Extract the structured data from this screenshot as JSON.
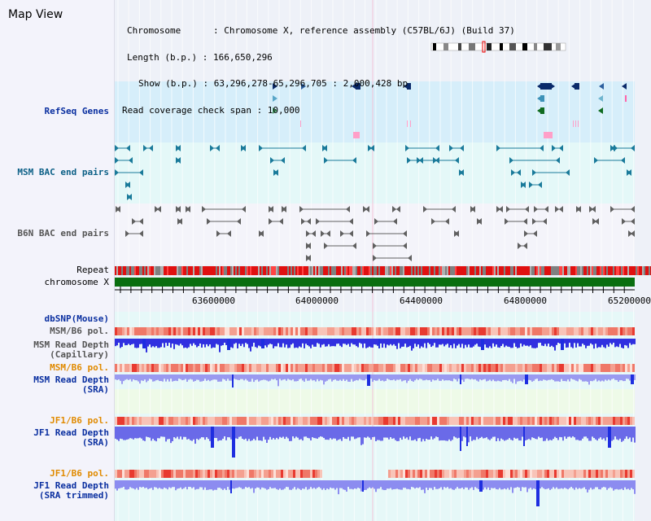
{
  "header": {
    "app_title": "Map View",
    "chromosome_line": "Chromosome      : Chromosome X, reference assembly (C57BL/6J) (Build 37)",
    "length_line": "Length (b.p.) : 166,650,296",
    "show_line": "Show (b.p.) : 63,296,278-65,296,705 : 2,000,428 bp",
    "coverage_line": "Read coverage check span : 10,000"
  },
  "tracks": {
    "refseq": "RefSeq Genes",
    "msm_bac": "MSM BAC end pairs",
    "b6n_bac": "B6N BAC end pairs",
    "repeat": "Repeat",
    "chromosome": "chromosome X",
    "dbsnp": "dbSNP(Mouse)",
    "msm_b6_pol_1": "MSM/B6 pol.",
    "msm_read_depth_cap_1": "MSM Read Depth",
    "msm_read_depth_cap_2": "(Capillary)",
    "msm_b6_pol_2": "MSM/B6 pol.",
    "msm_read_depth_sra_1": "MSM Read Depth",
    "msm_read_depth_sra_2": "(SRA)",
    "jf1_b6_pol_1": "JF1/B6 pol.",
    "jf1_read_depth_sra_1": "JF1 Read Depth",
    "jf1_read_depth_sra_2": "(SRA)",
    "jf1_b6_pol_2": "JF1/B6 pol.",
    "jf1_read_depth_trim_1": "JF1 Read Depth",
    "jf1_read_depth_trim_2": "(SRA trimmed)"
  },
  "axis": {
    "start_bp": 63296278,
    "end_bp": 65296705,
    "ticks": [
      "63600000",
      "64000000",
      "64400000",
      "64800000",
      "65200000"
    ]
  },
  "colors": {
    "refseq_bg": "#d6eefa",
    "bac_bg": "#e4f8f8",
    "b6n_bg": "#f4f4fa",
    "depth_bg": "#e6f8f8",
    "depth_bar": "#6a6ae8",
    "depth_dark": "#1e2ee0",
    "chromosome_bar": "#0a6e10",
    "repeat_red": "#e01010",
    "repeat_gray": "#808080"
  }
}
